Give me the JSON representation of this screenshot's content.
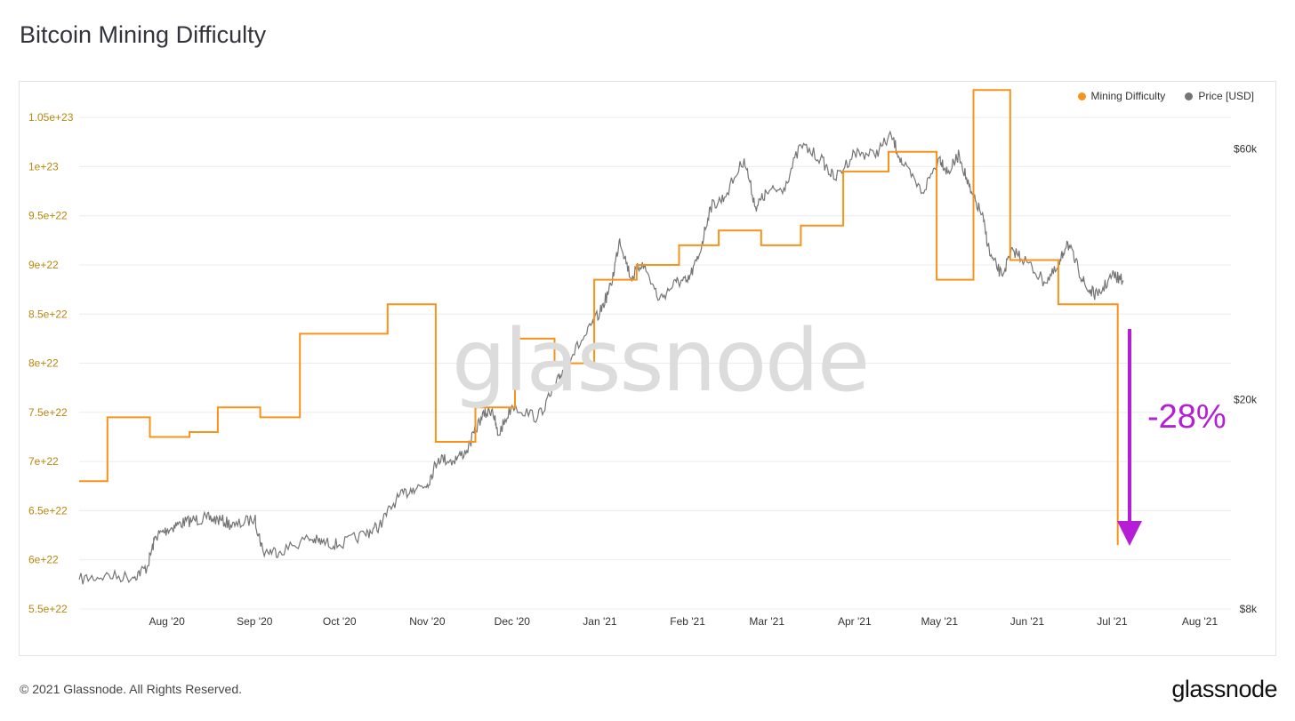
{
  "page": {
    "title": "Bitcoin Mining Difficulty",
    "footer": "© 2021 Glassnode. All Rights Reserved.",
    "logo": "glassnode",
    "watermark": "glassnode"
  },
  "legend": [
    {
      "label": "Mining Difficulty",
      "color": "#f7931a"
    },
    {
      "label": "Price [USD]",
      "color": "#757575"
    }
  ],
  "annotation": {
    "text": "-28%",
    "color": "#b51ed6"
  },
  "chart_data": {
    "type": "line",
    "x_axis": {
      "type": "date",
      "range": [
        "2020-07-01",
        "2021-08-12"
      ],
      "ticks": [
        {
          "date": "2020-08-01",
          "label": "Aug '20"
        },
        {
          "date": "2020-09-01",
          "label": "Sep '20"
        },
        {
          "date": "2020-10-01",
          "label": "Oct '20"
        },
        {
          "date": "2020-11-01",
          "label": "Nov '20"
        },
        {
          "date": "2020-12-01",
          "label": "Dec '20"
        },
        {
          "date": "2021-01-01",
          "label": "Jan '21"
        },
        {
          "date": "2021-02-01",
          "label": "Feb '21"
        },
        {
          "date": "2021-03-01",
          "label": "Mar '21"
        },
        {
          "date": "2021-04-01",
          "label": "Apr '21"
        },
        {
          "date": "2021-05-01",
          "label": "May '21"
        },
        {
          "date": "2021-06-01",
          "label": "Jun '21"
        },
        {
          "date": "2021-07-01",
          "label": "Jul '21"
        },
        {
          "date": "2021-08-01",
          "label": "Aug '21"
        }
      ]
    },
    "y_left": {
      "range": [
        5.5e+22,
        1.07e+23
      ],
      "ticks": [
        {
          "value": 5.5e+22,
          "label": "5.5e+22"
        },
        {
          "value": 6e+22,
          "label": "6e+22"
        },
        {
          "value": 6.5e+22,
          "label": "6.5e+22"
        },
        {
          "value": 7e+22,
          "label": "7e+22"
        },
        {
          "value": 7.5e+22,
          "label": "7.5e+22"
        },
        {
          "value": 8e+22,
          "label": "8e+22"
        },
        {
          "value": 8.5e+22,
          "label": "8.5e+22"
        },
        {
          "value": 9e+22,
          "label": "9e+22"
        },
        {
          "value": 9.5e+22,
          "label": "9.5e+22"
        },
        {
          "value": 1e+23,
          "label": "1e+23"
        },
        {
          "value": 1.05e+23,
          "label": "1.05e+23"
        }
      ],
      "tick_color": "#b8860b"
    },
    "y_right": {
      "scale": "log",
      "range": [
        8000,
        75000
      ],
      "ticks": [
        {
          "value": 8000,
          "label": "$8k"
        },
        {
          "value": 20000,
          "label": "$20k"
        },
        {
          "value": 60000,
          "label": "$60k"
        }
      ]
    },
    "grid": true,
    "legend_position": "top-right",
    "series": [
      {
        "name": "Mining Difficulty",
        "color": "#f7931a",
        "axis": "left",
        "step": true,
        "points": [
          [
            "2020-07-01",
            6.8e+22
          ],
          [
            "2020-07-11",
            7.45e+22
          ],
          [
            "2020-07-26",
            7.25e+22
          ],
          [
            "2020-08-09",
            7.3e+22
          ],
          [
            "2020-08-19",
            7.55e+22
          ],
          [
            "2020-09-03",
            7.45e+22
          ],
          [
            "2020-09-17",
            8.3e+22
          ],
          [
            "2020-10-03",
            8.3e+22
          ],
          [
            "2020-10-18",
            8.6e+22
          ],
          [
            "2020-11-04",
            7.2e+22
          ],
          [
            "2020-11-18",
            7.55e+22
          ],
          [
            "2020-12-02",
            8.25e+22
          ],
          [
            "2020-12-16",
            8e+22
          ],
          [
            "2020-12-30",
            8.85e+22
          ],
          [
            "2021-01-14",
            9e+22
          ],
          [
            "2021-01-29",
            9.2e+22
          ],
          [
            "2021-02-12",
            9.35e+22
          ],
          [
            "2021-02-27",
            9.2e+22
          ],
          [
            "2021-03-13",
            9.4e+22
          ],
          [
            "2021-03-28",
            9.95e+22
          ],
          [
            "2021-04-13",
            1.015e+23
          ],
          [
            "2021-04-30",
            8.85e+22
          ],
          [
            "2021-05-13",
            1.078e+23
          ],
          [
            "2021-05-26",
            9.05e+22
          ],
          [
            "2021-06-12",
            8.6e+22
          ],
          [
            "2021-07-03",
            6.15e+22
          ]
        ]
      },
      {
        "name": "Price [USD]",
        "color": "#757575",
        "axis": "right",
        "points": [
          [
            "2020-07-01",
            9100
          ],
          [
            "2020-07-10",
            9250
          ],
          [
            "2020-07-20",
            9200
          ],
          [
            "2020-07-25",
            9600
          ],
          [
            "2020-07-28",
            11000
          ],
          [
            "2020-08-01",
            11300
          ],
          [
            "2020-08-05",
            11600
          ],
          [
            "2020-08-10",
            11800
          ],
          [
            "2020-08-15",
            11900
          ],
          [
            "2020-08-20",
            11800
          ],
          [
            "2020-08-25",
            11500
          ],
          [
            "2020-09-01",
            11900
          ],
          [
            "2020-09-04",
            10300
          ],
          [
            "2020-09-10",
            10300
          ],
          [
            "2020-09-20",
            10900
          ],
          [
            "2020-09-25",
            10700
          ],
          [
            "2020-10-01",
            10600
          ],
          [
            "2020-10-10",
            11100
          ],
          [
            "2020-10-15",
            11500
          ],
          [
            "2020-10-21",
            12900
          ],
          [
            "2020-10-27",
            13600
          ],
          [
            "2020-11-01",
            13800
          ],
          [
            "2020-11-05",
            15500
          ],
          [
            "2020-11-10",
            15300
          ],
          [
            "2020-11-15",
            16000
          ],
          [
            "2020-11-20",
            18500
          ],
          [
            "2020-11-24",
            19200
          ],
          [
            "2020-11-26",
            17100
          ],
          [
            "2020-12-01",
            19500
          ],
          [
            "2020-12-10",
            18500
          ],
          [
            "2020-12-16",
            21000
          ],
          [
            "2020-12-20",
            23500
          ],
          [
            "2020-12-27",
            26500
          ],
          [
            "2021-01-01",
            29300
          ],
          [
            "2021-01-05",
            33000
          ],
          [
            "2021-01-08",
            40500
          ],
          [
            "2021-01-12",
            34000
          ],
          [
            "2021-01-16",
            36500
          ],
          [
            "2021-01-22",
            31000
          ],
          [
            "2021-01-28",
            33500
          ],
          [
            "2021-02-01",
            33500
          ],
          [
            "2021-02-05",
            37500
          ],
          [
            "2021-02-09",
            46500
          ],
          [
            "2021-02-14",
            48500
          ],
          [
            "2021-02-21",
            57500
          ],
          [
            "2021-02-25",
            46500
          ],
          [
            "2021-03-01",
            49500
          ],
          [
            "2021-03-07",
            50500
          ],
          [
            "2021-03-13",
            61000
          ],
          [
            "2021-03-20",
            57500
          ],
          [
            "2021-03-25",
            52500
          ],
          [
            "2021-04-01",
            59000
          ],
          [
            "2021-04-08",
            58500
          ],
          [
            "2021-04-14",
            63500
          ],
          [
            "2021-04-18",
            56000
          ],
          [
            "2021-04-25",
            49500
          ],
          [
            "2021-05-01",
            57800
          ],
          [
            "2021-05-04",
            54000
          ],
          [
            "2021-05-08",
            58500
          ],
          [
            "2021-05-12",
            49500
          ],
          [
            "2021-05-16",
            45000
          ],
          [
            "2021-05-19",
            37500
          ],
          [
            "2021-05-23",
            34500
          ],
          [
            "2021-05-27",
            38500
          ],
          [
            "2021-06-01",
            36500
          ],
          [
            "2021-06-07",
            33500
          ],
          [
            "2021-06-12",
            35500
          ],
          [
            "2021-06-15",
            40000
          ],
          [
            "2021-06-19",
            35500
          ],
          [
            "2021-06-22",
            32500
          ],
          [
            "2021-06-26",
            31500
          ],
          [
            "2021-07-01",
            34500
          ],
          [
            "2021-07-05",
            33700
          ]
        ]
      }
    ]
  }
}
